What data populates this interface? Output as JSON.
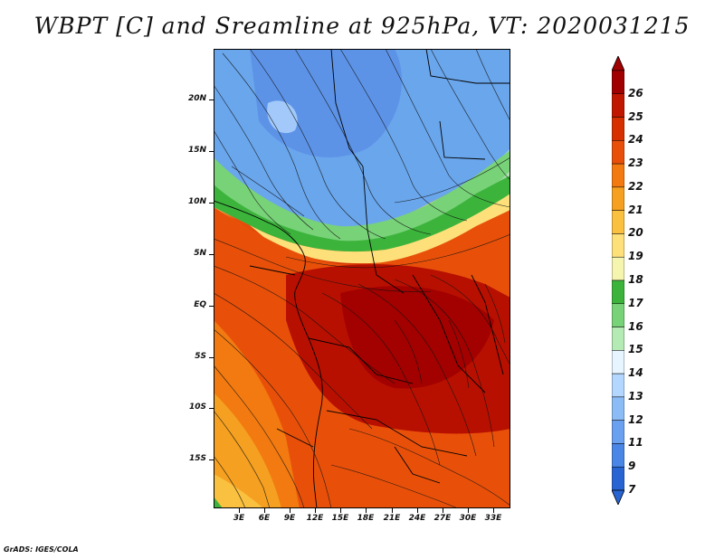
{
  "title": "WBPT [C] and Sreamline at 925hPa, VT: 2020031215",
  "credit": "GrADS: IGES/COLA",
  "y_axis": {
    "ticks": [
      "20N",
      "15N",
      "10N",
      "5N",
      "EQ",
      "5S",
      "10S",
      "15S"
    ]
  },
  "x_axis": {
    "ticks": [
      "3E",
      "6E",
      "9E",
      "12E",
      "15E",
      "18E",
      "21E",
      "24E",
      "27E",
      "30E",
      "33E"
    ]
  },
  "colorbar": {
    "labels": [
      "26",
      "25",
      "24",
      "23",
      "22",
      "21",
      "20",
      "19",
      "18",
      "17",
      "16",
      "15",
      "14",
      "13",
      "12",
      "11",
      "9",
      "7"
    ],
    "colors": [
      "#a00000",
      "#c01800",
      "#d63000",
      "#e8500a",
      "#f27a10",
      "#f5a020",
      "#fac040",
      "#fde07a",
      "#f5f5b0",
      "#3cb43c",
      "#78d278",
      "#b4eab4",
      "#e6f5ff",
      "#b4d7ff",
      "#8cbcf5",
      "#6aa0f0",
      "#4a86e6",
      "#2864d2"
    ]
  }
}
